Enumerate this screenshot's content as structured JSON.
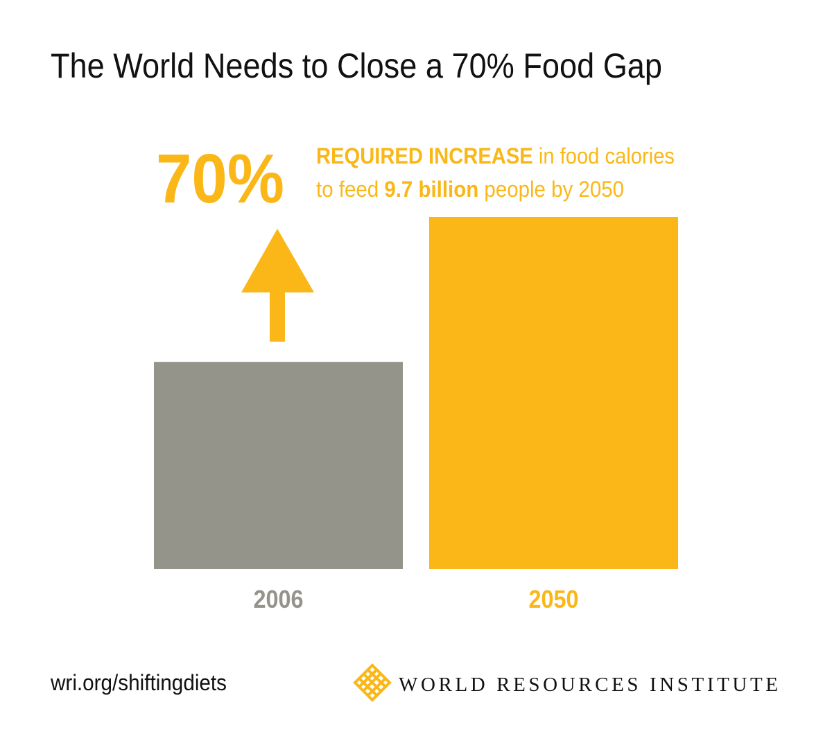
{
  "chart_data": {
    "type": "bar",
    "title": "The World Needs to Close a 70% Food Gap",
    "highlight": "70%",
    "annotation": [
      [
        "REQUIRED INCREASE",
        " in food calories"
      ],
      [
        "to feed ",
        "9.7 billion",
        " people by 2050"
      ]
    ],
    "categories": [
      "2006",
      "2050"
    ],
    "values": [
      100,
      170
    ],
    "colors": [
      "#94948b",
      "#fab717"
    ],
    "ylim": [
      0,
      170
    ]
  },
  "footer": {
    "url": "wri.org/shiftingdiets",
    "organization": "WORLD RESOURCES INSTITUTE"
  }
}
